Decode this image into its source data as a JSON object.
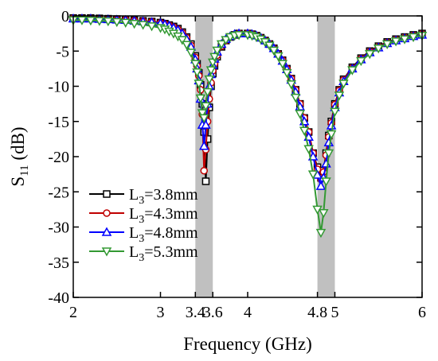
{
  "chart_data": {
    "type": "line",
    "xlabel": "Frequency (GHz)",
    "ylabel_main": "S",
    "ylabel_sub": "11",
    "ylabel_unit": " (dB)",
    "xlim": [
      2,
      6
    ],
    "ylim": [
      -40,
      0
    ],
    "xticks": [
      2,
      3,
      3.4,
      3.6,
      4,
      4.8,
      5,
      6
    ],
    "xtick_labels": [
      "2",
      "3",
      "3.4",
      "3.6",
      "4",
      "4.8",
      "5",
      "6"
    ],
    "yticks": [
      0,
      -5,
      -10,
      -15,
      -20,
      -25,
      -30,
      -35,
      -40
    ],
    "ytick_labels": [
      "0",
      "-5",
      "-10",
      "-15",
      "-20",
      "-25",
      "-30",
      "-35",
      "-40"
    ],
    "shaded_bands": [
      [
        3.4,
        3.6
      ],
      [
        4.8,
        5.0
      ]
    ],
    "band_color": "#c0c0c0",
    "legend_position": "lower-left",
    "series": [
      {
        "name_main": "L",
        "name_sub": "3",
        "name_rest": "=3.8mm",
        "color": "#000000",
        "marker": "square",
        "x": [
          2.0,
          2.1,
          2.2,
          2.3,
          2.4,
          2.5,
          2.6,
          2.7,
          2.8,
          2.9,
          3.0,
          3.05,
          3.1,
          3.15,
          3.2,
          3.25,
          3.3,
          3.35,
          3.4,
          3.42,
          3.44,
          3.46,
          3.48,
          3.5,
          3.52,
          3.54,
          3.56,
          3.58,
          3.6,
          3.62,
          3.65,
          3.7,
          3.75,
          3.8,
          3.85,
          3.9,
          4.0,
          4.05,
          4.1,
          4.15,
          4.2,
          4.25,
          4.3,
          4.35,
          4.4,
          4.45,
          4.5,
          4.55,
          4.6,
          4.65,
          4.7,
          4.75,
          4.8,
          4.84,
          4.87,
          4.9,
          4.93,
          4.96,
          5.0,
          5.05,
          5.1,
          5.2,
          5.3,
          5.4,
          5.5,
          5.6,
          5.7,
          5.8,
          5.9,
          6.0
        ],
        "y": [
          -0.3,
          -0.3,
          -0.3,
          -0.35,
          -0.4,
          -0.45,
          -0.5,
          -0.6,
          -0.7,
          -0.8,
          -0.95,
          -1.1,
          -1.3,
          -1.5,
          -1.8,
          -2.3,
          -3.0,
          -4.0,
          -5.7,
          -6.8,
          -8.1,
          -9.8,
          -12.5,
          -16.5,
          -23.5,
          -17.5,
          -13.0,
          -10.0,
          -8.2,
          -7.1,
          -5.8,
          -4.4,
          -3.5,
          -3.0,
          -2.7,
          -2.5,
          -2.5,
          -2.6,
          -2.8,
          -3.1,
          -3.5,
          -4.0,
          -4.6,
          -5.4,
          -6.3,
          -7.5,
          -8.9,
          -10.5,
          -12.5,
          -14.5,
          -16.5,
          -19.5,
          -21.5,
          -23.0,
          -22.0,
          -19.5,
          -17.0,
          -15.0,
          -12.5,
          -10.5,
          -9.0,
          -7.3,
          -6.0,
          -5.0,
          -4.3,
          -3.7,
          -3.3,
          -3.0,
          -2.7,
          -2.5
        ]
      },
      {
        "name_main": "L",
        "name_sub": "3",
        "name_rest": "=4.3mm",
        "color": "#c00000",
        "marker": "circle",
        "x": [
          2.0,
          2.1,
          2.2,
          2.3,
          2.4,
          2.5,
          2.6,
          2.7,
          2.8,
          2.9,
          3.0,
          3.05,
          3.1,
          3.15,
          3.2,
          3.25,
          3.3,
          3.35,
          3.4,
          3.42,
          3.44,
          3.46,
          3.48,
          3.5,
          3.52,
          3.54,
          3.56,
          3.58,
          3.6,
          3.62,
          3.65,
          3.7,
          3.75,
          3.8,
          3.85,
          3.9,
          4.0,
          4.05,
          4.1,
          4.15,
          4.2,
          4.25,
          4.3,
          4.35,
          4.4,
          4.45,
          4.5,
          4.55,
          4.6,
          4.65,
          4.7,
          4.75,
          4.8,
          4.84,
          4.87,
          4.9,
          4.93,
          4.96,
          5.0,
          5.05,
          5.1,
          5.2,
          5.3,
          5.4,
          5.5,
          5.6,
          5.7,
          5.8,
          5.9,
          6.0
        ],
        "y": [
          -0.35,
          -0.35,
          -0.35,
          -0.4,
          -0.45,
          -0.5,
          -0.55,
          -0.65,
          -0.75,
          -0.85,
          -1.0,
          -1.15,
          -1.35,
          -1.6,
          -1.9,
          -2.4,
          -3.1,
          -4.2,
          -5.9,
          -7.1,
          -8.5,
          -10.5,
          -14.0,
          -22.0,
          -19.0,
          -15.0,
          -11.8,
          -9.5,
          -7.8,
          -6.8,
          -5.6,
          -4.3,
          -3.5,
          -3.0,
          -2.7,
          -2.5,
          -2.5,
          -2.6,
          -2.8,
          -3.1,
          -3.5,
          -4.0,
          -4.6,
          -5.4,
          -6.3,
          -7.5,
          -8.9,
          -10.5,
          -12.5,
          -14.5,
          -16.5,
          -19.5,
          -21.8,
          -23.2,
          -22.2,
          -19.8,
          -17.2,
          -15.2,
          -12.6,
          -10.6,
          -9.1,
          -7.4,
          -6.1,
          -5.1,
          -4.4,
          -3.8,
          -3.4,
          -3.1,
          -2.8,
          -2.6
        ]
      },
      {
        "name_main": "L",
        "name_sub": "3",
        "name_rest": "=4.8mm",
        "color": "#0000ff",
        "marker": "triangle-up",
        "x": [
          2.0,
          2.1,
          2.2,
          2.3,
          2.4,
          2.5,
          2.6,
          2.7,
          2.8,
          2.9,
          3.0,
          3.05,
          3.1,
          3.15,
          3.2,
          3.25,
          3.3,
          3.35,
          3.4,
          3.42,
          3.44,
          3.46,
          3.48,
          3.5,
          3.52,
          3.54,
          3.56,
          3.58,
          3.6,
          3.62,
          3.65,
          3.7,
          3.75,
          3.8,
          3.85,
          3.9,
          4.0,
          4.05,
          4.1,
          4.15,
          4.2,
          4.25,
          4.3,
          4.35,
          4.4,
          4.45,
          4.5,
          4.55,
          4.6,
          4.65,
          4.7,
          4.75,
          4.8,
          4.84,
          4.87,
          4.9,
          4.93,
          4.96,
          5.0,
          5.05,
          5.1,
          5.2,
          5.3,
          5.4,
          5.5,
          5.6,
          5.7,
          5.8,
          5.9,
          6.0
        ],
        "y": [
          -0.4,
          -0.4,
          -0.4,
          -0.45,
          -0.5,
          -0.55,
          -0.6,
          -0.7,
          -0.8,
          -0.9,
          -1.05,
          -1.2,
          -1.4,
          -1.7,
          -2.0,
          -2.5,
          -3.3,
          -4.4,
          -6.2,
          -7.5,
          -9.2,
          -11.8,
          -15.5,
          -18.5,
          -15.5,
          -12.5,
          -10.0,
          -8.3,
          -7.0,
          -6.1,
          -5.1,
          -4.0,
          -3.3,
          -2.9,
          -2.6,
          -2.5,
          -2.5,
          -2.6,
          -2.8,
          -3.1,
          -3.5,
          -4.0,
          -4.6,
          -5.4,
          -6.4,
          -7.6,
          -9.1,
          -10.8,
          -12.9,
          -15.0,
          -17.2,
          -20.0,
          -22.6,
          -24.2,
          -23.0,
          -21.0,
          -18.0,
          -15.6,
          -13.0,
          -10.9,
          -9.3,
          -7.5,
          -6.2,
          -5.2,
          -4.5,
          -3.9,
          -3.5,
          -3.2,
          -2.9,
          -2.7
        ]
      },
      {
        "name_main": "L",
        "name_sub": "3",
        "name_rest": "=5.3mm",
        "color": "#339933",
        "marker": "triangle-down",
        "x": [
          2.0,
          2.1,
          2.2,
          2.3,
          2.4,
          2.5,
          2.6,
          2.7,
          2.8,
          2.9,
          3.0,
          3.05,
          3.1,
          3.15,
          3.2,
          3.25,
          3.3,
          3.35,
          3.4,
          3.42,
          3.44,
          3.46,
          3.48,
          3.5,
          3.52,
          3.54,
          3.56,
          3.58,
          3.6,
          3.62,
          3.65,
          3.7,
          3.75,
          3.8,
          3.85,
          3.9,
          4.0,
          4.05,
          4.1,
          4.15,
          4.2,
          4.25,
          4.3,
          4.35,
          4.4,
          4.45,
          4.5,
          4.55,
          4.6,
          4.65,
          4.7,
          4.75,
          4.8,
          4.84,
          4.87,
          4.9,
          4.93,
          4.96,
          5.0,
          5.05,
          5.1,
          5.2,
          5.3,
          5.4,
          5.5,
          5.6,
          5.7,
          5.8,
          5.9,
          6.0
        ],
        "y": [
          -0.6,
          -0.6,
          -0.65,
          -0.7,
          -0.75,
          -0.85,
          -0.95,
          -1.1,
          -1.25,
          -1.45,
          -1.7,
          -1.9,
          -2.2,
          -2.5,
          -2.9,
          -3.4,
          -4.1,
          -5.2,
          -6.8,
          -8.0,
          -9.6,
          -11.7,
          -13.8,
          -14.5,
          -12.8,
          -10.8,
          -9.0,
          -7.7,
          -6.6,
          -5.8,
          -4.9,
          -4.0,
          -3.4,
          -3.0,
          -2.8,
          -2.7,
          -2.7,
          -2.8,
          -3.0,
          -3.3,
          -3.7,
          -4.2,
          -4.9,
          -5.7,
          -6.8,
          -8.1,
          -9.7,
          -11.6,
          -13.9,
          -16.3,
          -18.9,
          -22.5,
          -27.5,
          -30.8,
          -28.0,
          -23.5,
          -19.5,
          -16.8,
          -13.6,
          -11.3,
          -9.6,
          -7.7,
          -6.4,
          -5.4,
          -4.6,
          -4.0,
          -3.6,
          -3.3,
          -3.0,
          -2.8
        ]
      }
    ]
  }
}
